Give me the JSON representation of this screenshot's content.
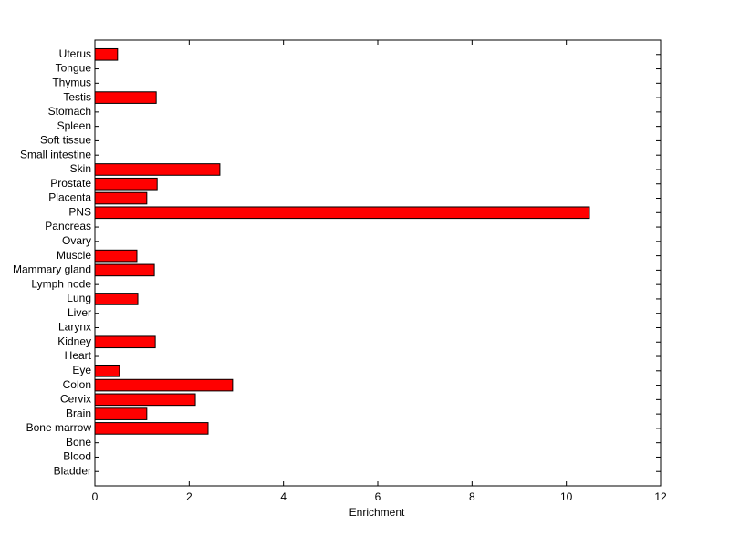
{
  "chart_data": {
    "type": "barh",
    "x_label": "Enrichment",
    "categories": [
      "Bladder",
      "Blood",
      "Bone",
      "Bone marrow",
      "Brain",
      "Cervix",
      "Colon",
      "Eye",
      "Heart",
      "Kidney",
      "Larynx",
      "Liver",
      "Lung",
      "Lymph node",
      "Mammary gland",
      "Muscle",
      "Ovary",
      "Pancreas",
      "PNS",
      "Placenta",
      "Prostate",
      "Skin",
      "Small intestine",
      "Soft tissue",
      "Spleen",
      "Stomach",
      "Testis",
      "Thymus",
      "Tongue",
      "Uterus"
    ],
    "values": [
      0,
      0,
      0,
      2.4,
      1.1,
      2.13,
      2.92,
      0.52,
      0,
      1.28,
      0,
      0,
      0.91,
      0,
      1.26,
      0.89,
      0,
      0,
      10.49,
      1.1,
      1.32,
      2.65,
      0,
      0,
      0,
      0,
      1.3,
      0,
      0,
      0.48
    ],
    "color": "#ff0000",
    "xlim": [
      0,
      12
    ],
    "xticks": [
      0,
      2,
      4,
      6,
      8,
      10,
      12
    ]
  }
}
